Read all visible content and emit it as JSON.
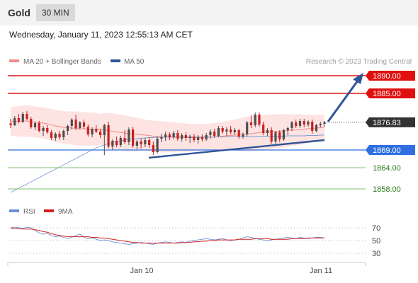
{
  "header": {
    "symbol": "Gold",
    "timeframe": "30 MIN"
  },
  "datetime": "Wednesday, January 11, 2023 12:55:13 AM CET",
  "credit": "Research © 2023 Trading Central",
  "legend": {
    "ma_bb": "MA 20 + Bollinger Bands",
    "ma50": "MA 50",
    "rsi": "RSI",
    "ma9": "9MA"
  },
  "colors": {
    "up": "#4d4d4d",
    "down": "#cc1f1f",
    "resistance": "#e01010",
    "support": "#2f6fe0",
    "target_lines": "#7fbf6f",
    "target_text": "#2a7a1a",
    "trend": "#2f5597",
    "band_fill": "#fde3e1",
    "ma20": "#f28a8a",
    "ma50": "#7b9fd4",
    "rsi": "#6d8fd6",
    "ma9": "#d42020"
  },
  "chart_data": {
    "type": "candlestick",
    "x_labels": [
      "Jan 10",
      "Jan 11"
    ],
    "price_levels": [
      {
        "value": 1890.0,
        "label": "1890.00",
        "kind": "resistance"
      },
      {
        "value": 1885.0,
        "label": "1885.00",
        "kind": "resistance"
      },
      {
        "value": 1876.83,
        "label": "1876.83",
        "kind": "last"
      },
      {
        "value": 1869.0,
        "label": "1869.00",
        "kind": "support"
      },
      {
        "value": 1864.0,
        "label": "1864.00",
        "kind": "target"
      },
      {
        "value": 1858.0,
        "label": "1858.00",
        "kind": "target"
      }
    ],
    "candles": [
      [
        1876.5,
        1877.8,
        1875.2,
        1876.0
      ],
      [
        1876.0,
        1878.6,
        1875.8,
        1878.0
      ],
      [
        1878.0,
        1879.2,
        1876.5,
        1877.0
      ],
      [
        1877.0,
        1879.8,
        1876.6,
        1879.2
      ],
      [
        1879.2,
        1880.0,
        1877.4,
        1877.8
      ],
      [
        1877.8,
        1878.4,
        1875.0,
        1875.4
      ],
      [
        1875.4,
        1877.0,
        1874.6,
        1876.6
      ],
      [
        1876.6,
        1877.2,
        1874.0,
        1874.4
      ],
      [
        1874.4,
        1875.8,
        1873.0,
        1875.2
      ],
      [
        1875.2,
        1876.0,
        1873.6,
        1874.0
      ],
      [
        1874.0,
        1874.6,
        1871.8,
        1872.4
      ],
      [
        1872.4,
        1874.0,
        1871.6,
        1873.6
      ],
      [
        1873.6,
        1874.4,
        1872.0,
        1872.6
      ],
      [
        1872.6,
        1874.8,
        1871.8,
        1874.4
      ],
      [
        1874.4,
        1876.2,
        1873.2,
        1875.8
      ],
      [
        1875.8,
        1878.0,
        1874.8,
        1877.6
      ],
      [
        1877.6,
        1879.0,
        1874.6,
        1875.2
      ],
      [
        1875.2,
        1877.2,
        1874.8,
        1876.8
      ],
      [
        1876.8,
        1877.6,
        1875.0,
        1875.6
      ],
      [
        1875.6,
        1876.2,
        1872.8,
        1873.4
      ],
      [
        1873.4,
        1875.4,
        1872.6,
        1875.0
      ],
      [
        1875.0,
        1876.0,
        1873.8,
        1874.2
      ],
      [
        1874.2,
        1875.0,
        1872.4,
        1873.2
      ],
      [
        1873.2,
        1876.4,
        1867.6,
        1876.0
      ],
      [
        1876.0,
        1877.0,
        1869.4,
        1870.0
      ],
      [
        1870.0,
        1872.0,
        1869.0,
        1871.6
      ],
      [
        1871.6,
        1872.8,
        1869.8,
        1870.4
      ],
      [
        1870.4,
        1873.0,
        1869.8,
        1872.4
      ],
      [
        1872.4,
        1874.6,
        1870.8,
        1871.2
      ],
      [
        1871.2,
        1875.4,
        1870.4,
        1874.8
      ],
      [
        1874.8,
        1875.6,
        1869.6,
        1870.2
      ],
      [
        1870.2,
        1871.8,
        1869.2,
        1871.4
      ],
      [
        1871.4,
        1872.2,
        1869.4,
        1870.6
      ],
      [
        1870.6,
        1872.4,
        1869.8,
        1871.8
      ],
      [
        1871.8,
        1872.6,
        1869.6,
        1870.4
      ],
      [
        1870.4,
        1871.4,
        1867.6,
        1868.4
      ],
      [
        1868.4,
        1872.8,
        1868.0,
        1872.2
      ],
      [
        1872.2,
        1873.6,
        1871.2,
        1872.6
      ],
      [
        1872.6,
        1874.2,
        1871.6,
        1873.4
      ],
      [
        1873.4,
        1874.0,
        1871.8,
        1872.6
      ],
      [
        1872.6,
        1874.4,
        1872.0,
        1873.8
      ],
      [
        1873.8,
        1874.6,
        1871.6,
        1872.2
      ],
      [
        1872.2,
        1873.8,
        1871.4,
        1873.2
      ],
      [
        1873.2,
        1874.0,
        1871.6,
        1872.4
      ],
      [
        1872.4,
        1873.4,
        1871.0,
        1872.8
      ],
      [
        1872.8,
        1873.6,
        1871.2,
        1871.8
      ],
      [
        1871.8,
        1873.2,
        1870.8,
        1872.6
      ],
      [
        1872.6,
        1873.4,
        1871.4,
        1872.0
      ],
      [
        1872.0,
        1873.8,
        1871.6,
        1873.2
      ],
      [
        1873.2,
        1874.8,
        1872.2,
        1874.2
      ],
      [
        1874.2,
        1875.0,
        1872.4,
        1873.0
      ],
      [
        1873.0,
        1875.8,
        1872.6,
        1875.2
      ],
      [
        1875.2,
        1875.8,
        1873.6,
        1874.2
      ],
      [
        1874.2,
        1875.4,
        1873.0,
        1874.8
      ],
      [
        1874.8,
        1875.8,
        1873.4,
        1874.0
      ],
      [
        1874.0,
        1875.2,
        1873.2,
        1874.6
      ],
      [
        1874.6,
        1875.0,
        1872.2,
        1872.8
      ],
      [
        1872.8,
        1874.0,
        1872.2,
        1873.4
      ],
      [
        1873.4,
        1877.2,
        1872.8,
        1876.8
      ],
      [
        1876.8,
        1878.8,
        1875.2,
        1876.0
      ],
      [
        1876.0,
        1879.6,
        1875.4,
        1879.0
      ],
      [
        1879.0,
        1879.6,
        1875.6,
        1876.2
      ],
      [
        1876.2,
        1877.0,
        1873.2,
        1873.8
      ],
      [
        1873.8,
        1875.2,
        1873.0,
        1874.6
      ],
      [
        1874.6,
        1875.4,
        1870.8,
        1871.4
      ],
      [
        1871.4,
        1874.4,
        1870.8,
        1874.0
      ],
      [
        1874.0,
        1874.6,
        1871.2,
        1872.0
      ],
      [
        1872.0,
        1875.0,
        1871.6,
        1874.6
      ],
      [
        1874.6,
        1875.6,
        1873.2,
        1875.2
      ],
      [
        1875.2,
        1877.2,
        1874.4,
        1876.8
      ],
      [
        1876.8,
        1877.6,
        1875.2,
        1875.8
      ],
      [
        1875.8,
        1877.8,
        1875.2,
        1877.2
      ],
      [
        1877.2,
        1877.8,
        1875.4,
        1876.2
      ],
      [
        1876.2,
        1877.4,
        1875.6,
        1877.0
      ],
      [
        1877.0,
        1877.6,
        1873.6,
        1874.4
      ],
      [
        1874.4,
        1876.4,
        1874.0,
        1876.0
      ],
      [
        1876.0,
        1877.0,
        1875.4,
        1876.4
      ],
      [
        1876.4,
        1877.2,
        1875.6,
        1876.83
      ]
    ],
    "ma20": [
      1877.0,
      1877.1,
      1877.1,
      1877.2,
      1877.2,
      1877.1,
      1876.9,
      1876.8,
      1876.6,
      1876.4,
      1876.1,
      1875.8,
      1875.6,
      1875.4,
      1875.3,
      1875.2,
      1875.1,
      1875.0,
      1875.0,
      1874.9,
      1874.9,
      1874.8,
      1874.8,
      1874.6,
      1874.5,
      1874.3,
      1874.1,
      1874.0,
      1873.8,
      1873.6,
      1873.5,
      1873.4,
      1873.3,
      1873.2,
      1873.1,
      1872.9,
      1872.8,
      1872.7,
      1872.7,
      1872.6,
      1872.6,
      1872.6,
      1872.6,
      1872.5,
      1872.5,
      1872.5,
      1872.5,
      1872.6,
      1872.6,
      1872.6,
      1872.7,
      1872.8,
      1872.9,
      1873.0,
      1873.1,
      1873.2,
      1873.3,
      1873.4,
      1873.5,
      1873.6,
      1873.8,
      1873.9,
      1874.0,
      1874.1,
      1874.2,
      1874.3,
      1874.3,
      1874.4,
      1874.5,
      1874.6,
      1874.7,
      1874.8,
      1874.9,
      1875.0,
      1875.1,
      1875.2,
      1875.3,
      1875.4
    ],
    "bb_upper": [
      1881.0,
      1881.3,
      1881.4,
      1881.6,
      1881.6,
      1881.5,
      1881.3,
      1881.2,
      1881.0,
      1880.8,
      1880.6,
      1880.4,
      1880.2,
      1880.0,
      1879.9,
      1879.9,
      1879.9,
      1879.8,
      1879.7,
      1879.6,
      1879.6,
      1879.4,
      1879.2,
      1879.4,
      1879.5,
      1879.4,
      1879.2,
      1879.0,
      1878.8,
      1878.6,
      1878.3,
      1878.1,
      1877.9,
      1877.6,
      1877.4,
      1877.3,
      1877.2,
      1877.1,
      1877.0,
      1876.9,
      1876.8,
      1876.7,
      1876.6,
      1876.5,
      1876.4,
      1876.3,
      1876.3,
      1876.3,
      1876.4,
      1876.5,
      1876.6,
      1876.8,
      1877.0,
      1877.2,
      1877.4,
      1877.6,
      1877.9,
      1878.2,
      1878.4,
      1878.6,
      1878.8,
      1878.9,
      1879.0,
      1879.0,
      1879.0,
      1879.1,
      1879.1,
      1879.1,
      1879.1,
      1879.1,
      1879.1,
      1879.1,
      1879.1,
      1879.0,
      1879.0,
      1879.0,
      1879.0,
      1879.0
    ],
    "bb_lower": [
      1873.0,
      1872.9,
      1872.8,
      1872.8,
      1872.8,
      1872.7,
      1872.5,
      1872.4,
      1872.2,
      1872.0,
      1871.6,
      1871.2,
      1871.0,
      1870.8,
      1870.7,
      1870.5,
      1870.3,
      1870.2,
      1870.3,
      1870.2,
      1870.2,
      1870.2,
      1870.4,
      1869.8,
      1869.5,
      1869.2,
      1869.0,
      1869.0,
      1868.8,
      1868.6,
      1868.7,
      1868.7,
      1868.7,
      1868.8,
      1868.8,
      1868.5,
      1868.4,
      1868.3,
      1868.4,
      1868.3,
      1868.4,
      1868.5,
      1868.6,
      1868.5,
      1868.6,
      1868.7,
      1868.7,
      1868.9,
      1868.8,
      1868.7,
      1868.8,
      1868.8,
      1868.8,
      1868.8,
      1868.8,
      1868.8,
      1868.7,
      1868.6,
      1868.6,
      1868.6,
      1868.8,
      1868.9,
      1869.0,
      1869.2,
      1869.4,
      1869.5,
      1869.5,
      1869.7,
      1869.9,
      1870.1,
      1870.3,
      1870.5,
      1870.7,
      1871.0,
      1871.2,
      1871.4,
      1871.6,
      1871.8
    ],
    "ma50": [
      1857.0,
      1857.6,
      1858.2,
      1858.8,
      1859.4,
      1860.0,
      1860.6,
      1861.2,
      1861.8,
      1862.4,
      1863.0,
      1863.6,
      1864.2,
      1864.8,
      1865.4,
      1866.0,
      1866.6,
      1867.2,
      1867.8,
      1868.4,
      1869.0,
      1869.6,
      1870.0,
      1870.4,
      1870.8,
      1871.1,
      1871.4,
      1871.6,
      1871.8,
      1872.0,
      1872.1,
      1872.2,
      1872.3,
      1872.4,
      1872.5,
      1872.5,
      1872.6,
      1872.6,
      1872.6,
      1872.7,
      1872.7,
      1872.7,
      1872.7,
      1872.7,
      1872.7,
      1872.7,
      1872.7,
      1872.7,
      1872.7,
      1872.7,
      1872.7,
      1872.7,
      1872.7,
      1872.7,
      1872.8,
      1872.8,
      1872.8,
      1872.8,
      1872.8,
      1872.8,
      1872.8,
      1872.9,
      1872.9,
      1872.9,
      1872.9,
      1872.9,
      1872.9,
      1872.9,
      1873.0,
      1873.0,
      1873.0,
      1873.0,
      1873.0,
      1873.1,
      1873.1,
      1873.1,
      1873.2,
      1873.2
    ],
    "rsi": {
      "levels": [
        70,
        50,
        30
      ],
      "rsi": [
        70,
        71,
        70,
        69,
        71,
        70,
        66,
        62,
        60,
        61,
        58,
        56,
        57,
        55,
        53,
        55,
        58,
        60,
        55,
        53,
        54,
        52,
        50,
        51,
        50,
        48,
        47,
        46,
        45,
        44,
        45,
        46,
        47,
        46,
        45,
        44,
        46,
        47,
        48,
        47,
        46,
        47,
        48,
        47,
        49,
        50,
        51,
        52,
        53,
        52,
        51,
        52,
        53,
        51,
        50,
        51,
        52,
        54,
        56,
        55,
        53,
        52,
        51,
        50,
        51,
        52,
        53,
        54,
        55,
        54,
        53,
        55,
        54,
        53,
        54,
        55,
        55,
        54
      ],
      "ma9": [
        69,
        69,
        69,
        68,
        68,
        68,
        67,
        66,
        64,
        63,
        61,
        59,
        58,
        57,
        56,
        56,
        56,
        56,
        56,
        56,
        55,
        55,
        54,
        54,
        53,
        52,
        51,
        50,
        49,
        48,
        47,
        47,
        46,
        46,
        46,
        46,
        46,
        46,
        46,
        46,
        46,
        46,
        47,
        47,
        47,
        48,
        48,
        49,
        49,
        50,
        50,
        51,
        51,
        51,
        51,
        51,
        52,
        52,
        52,
        52,
        53,
        53,
        53,
        53,
        52,
        52,
        52,
        52,
        52,
        53,
        53,
        53,
        53,
        54,
        54,
        54,
        54,
        54
      ]
    }
  }
}
